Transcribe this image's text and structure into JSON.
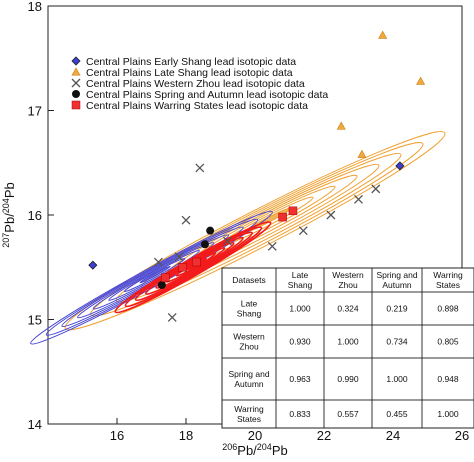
{
  "chart_data": {
    "type": "scatter",
    "xlabel_base": "Pb/",
    "xlabel_sup1": "206",
    "xlabel_sup2": "204",
    "xlabel_tail": "Pb",
    "ylabel_sup1": "207",
    "ylabel_mid": "Pb/",
    "ylabel_sup2": "204",
    "ylabel_tail": "Pb",
    "xlim": [
      14,
      26
    ],
    "ylim": [
      14,
      18
    ],
    "xticks": [
      16,
      18,
      20,
      22,
      24,
      26
    ],
    "yticks": [
      14,
      15,
      16,
      17,
      18
    ],
    "legend_position": "top-left",
    "series": [
      {
        "name": "Central Plains Early Shang lead isotopic data",
        "marker": "diamond",
        "color": "#3b3fd1",
        "contour_color": "#4747d6",
        "points": [
          [
            15.3,
            15.52
          ],
          [
            24.2,
            16.47
          ]
        ],
        "contour": {
          "center": [
            17.0,
            15.4
          ],
          "slope": 0.18,
          "length": 7.0,
          "width": 0.18
        }
      },
      {
        "name": "Central Plains Late Shang lead isotopic data",
        "marker": "triangle",
        "color": "#f2a93b",
        "contour_color": "#f0a030",
        "points": [
          [
            23.7,
            17.72
          ],
          [
            24.8,
            17.28
          ],
          [
            22.5,
            16.85
          ],
          [
            23.1,
            16.58
          ]
        ],
        "contour": {
          "center": [
            20.0,
            15.85
          ],
          "slope": 0.17,
          "length": 11.0,
          "width": 0.35
        }
      },
      {
        "name": "Central Plains Western Zhou lead isotopic data",
        "marker": "x",
        "color": "#555555",
        "points": [
          [
            17.6,
            15.02
          ],
          [
            18.4,
            16.45
          ],
          [
            18.0,
            15.95
          ],
          [
            17.2,
            15.55
          ],
          [
            20.5,
            15.7
          ],
          [
            21.4,
            15.85
          ],
          [
            22.2,
            16.0
          ],
          [
            23.0,
            16.15
          ],
          [
            23.5,
            16.25
          ],
          [
            19.2,
            15.75
          ],
          [
            17.8,
            15.6
          ]
        ]
      },
      {
        "name": "Central Plains Spring and Autumn lead isotopic data",
        "marker": "circle",
        "color": "#111111",
        "points": [
          [
            18.7,
            15.85
          ],
          [
            17.3,
            15.33
          ],
          [
            18.55,
            15.72
          ]
        ]
      },
      {
        "name": "Central Plains Warring States lead isotopic data",
        "marker": "square",
        "color": "#f03030",
        "contour_color": "#f21a1a",
        "points": [
          [
            17.4,
            15.4
          ],
          [
            17.9,
            15.5
          ],
          [
            18.3,
            15.55
          ],
          [
            20.8,
            15.98
          ],
          [
            21.1,
            16.04
          ]
        ],
        "contour": {
          "center": [
            18.2,
            15.5
          ],
          "slope": 0.19,
          "length": 4.5,
          "width": 0.16
        }
      }
    ],
    "table": {
      "headers": [
        "Datasets",
        "Late Shang",
        "Western Zhou",
        "Spring and Autumn",
        "Warring States"
      ],
      "rows": [
        [
          "Late Shang",
          "1.000",
          "0.324",
          "0.219",
          "0.898"
        ],
        [
          "Western Zhou",
          "0.930",
          "1.000",
          "0.734",
          "0.805"
        ],
        [
          "Spring and Autumn",
          "0.963",
          "0.990",
          "1.000",
          "0.948"
        ],
        [
          "Warring States",
          "0.833",
          "0.557",
          "0.455",
          "1.000"
        ]
      ]
    }
  }
}
